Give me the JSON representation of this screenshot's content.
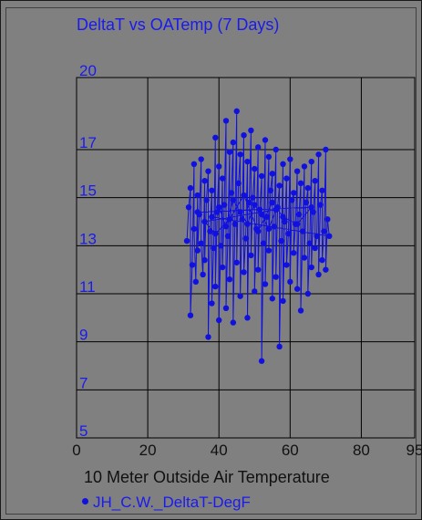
{
  "chart_data": {
    "type": "scatter",
    "title": "DeltaT vs OATemp (7 Days)",
    "xlabel": "10 Meter Outside Air Temperature",
    "ylabel": "",
    "xlim": [
      0,
      95
    ],
    "ylim": [
      5,
      20
    ],
    "x_ticks": [
      "0",
      "20",
      "40",
      "60",
      "80",
      "95"
    ],
    "y_ticks": [
      "5",
      "7",
      "9",
      "11",
      "13",
      "15",
      "17",
      "20"
    ],
    "grid": true,
    "legend_position": "bottom-left",
    "colors": {
      "series": "#1010e0",
      "text": "#1a1aee",
      "background": "#808080",
      "grid": "#000000"
    },
    "series": [
      {
        "name": "JH_C.W._DeltaT-DegF",
        "connected": true,
        "points": [
          [
            31,
            13.2
          ],
          [
            31.5,
            14.6
          ],
          [
            32,
            15.4
          ],
          [
            32,
            10.1
          ],
          [
            32.5,
            12.2
          ],
          [
            33,
            16.4
          ],
          [
            33,
            13.7
          ],
          [
            33.5,
            11.5
          ],
          [
            34,
            15.1
          ],
          [
            34,
            12.8
          ],
          [
            34.5,
            14.3
          ],
          [
            35,
            16.6
          ],
          [
            35,
            13.1
          ],
          [
            35.5,
            11.8
          ],
          [
            36,
            15.7
          ],
          [
            36,
            12.4
          ],
          [
            36.5,
            14.9
          ],
          [
            37,
            16.1
          ],
          [
            37,
            9.2
          ],
          [
            37.5,
            13.6
          ],
          [
            38,
            15.3
          ],
          [
            38,
            10.6
          ],
          [
            38.5,
            12.9
          ],
          [
            39,
            17.5
          ],
          [
            39,
            11.3
          ],
          [
            39.5,
            14.4
          ],
          [
            40,
            16.3
          ],
          [
            40,
            9.9
          ],
          [
            40.5,
            13.0
          ],
          [
            41,
            15.8
          ],
          [
            41,
            12.1
          ],
          [
            41.5,
            14.7
          ],
          [
            42,
            18.2
          ],
          [
            42,
            10.4
          ],
          [
            42.5,
            13.4
          ],
          [
            43,
            16.9
          ],
          [
            43,
            11.6
          ],
          [
            43.5,
            15.2
          ],
          [
            44,
            17.3
          ],
          [
            44,
            9.8
          ],
          [
            44.5,
            13.9
          ],
          [
            45,
            18.6
          ],
          [
            45,
            12.3
          ],
          [
            45.5,
            15.6
          ],
          [
            46,
            16.8
          ],
          [
            46,
            10.9
          ],
          [
            46.5,
            14.1
          ],
          [
            47,
            17.6
          ],
          [
            47,
            11.9
          ],
          [
            47.5,
            13.3
          ],
          [
            48,
            16.5
          ],
          [
            48,
            10.0
          ],
          [
            48.5,
            14.8
          ],
          [
            49,
            17.8
          ],
          [
            49,
            12.6
          ],
          [
            49.5,
            15.0
          ],
          [
            50,
            16.2
          ],
          [
            50,
            11.1
          ],
          [
            50.5,
            13.7
          ],
          [
            51,
            17.1
          ],
          [
            51,
            12.0
          ],
          [
            51.5,
            14.5
          ],
          [
            52,
            15.9
          ],
          [
            52,
            8.2
          ],
          [
            52.5,
            13.1
          ],
          [
            53,
            17.4
          ],
          [
            53,
            11.4
          ],
          [
            53.5,
            14.2
          ],
          [
            54,
            16.7
          ],
          [
            54,
            12.8
          ],
          [
            54.5,
            15.3
          ],
          [
            55,
            16.0
          ],
          [
            55,
            10.8
          ],
          [
            55.5,
            13.8
          ],
          [
            56,
            17.0
          ],
          [
            56,
            11.7
          ],
          [
            56.5,
            14.6
          ],
          [
            57,
            15.5
          ],
          [
            57,
            8.8
          ],
          [
            57.5,
            13.2
          ],
          [
            58,
            16.4
          ],
          [
            58,
            10.7
          ],
          [
            58.5,
            14.0
          ],
          [
            59,
            15.8
          ],
          [
            59,
            12.2
          ],
          [
            59.5,
            13.5
          ],
          [
            60,
            16.6
          ],
          [
            60,
            11.5
          ],
          [
            60.5,
            14.9
          ],
          [
            61,
            15.2
          ],
          [
            61,
            12.7
          ],
          [
            61.5,
            13.9
          ],
          [
            62,
            16.1
          ],
          [
            62,
            11.2
          ],
          [
            62.5,
            14.3
          ],
          [
            63,
            15.6
          ],
          [
            63,
            10.3
          ],
          [
            63.5,
            13.6
          ],
          [
            64,
            16.3
          ],
          [
            64,
            12.5
          ],
          [
            64.5,
            14.8
          ],
          [
            65,
            15.4
          ],
          [
            65,
            11.0
          ],
          [
            65.5,
            13.1
          ],
          [
            66,
            16.5
          ],
          [
            66,
            12.1
          ],
          [
            66.5,
            14.4
          ],
          [
            67,
            15.7
          ],
          [
            67,
            12.9
          ],
          [
            67.5,
            13.4
          ],
          [
            68,
            16.8
          ],
          [
            68,
            11.8
          ],
          [
            68.5,
            14.7
          ],
          [
            69,
            15.3
          ],
          [
            69,
            12.4
          ],
          [
            69.5,
            13.6
          ],
          [
            70,
            17.0
          ],
          [
            70,
            12.0
          ],
          [
            70.5,
            14.1
          ],
          [
            71,
            13.4
          ],
          [
            38,
            14.2
          ],
          [
            40,
            14.6
          ],
          [
            42,
            13.8
          ],
          [
            44,
            14.9
          ],
          [
            46,
            14.4
          ],
          [
            48,
            13.9
          ],
          [
            50,
            14.7
          ],
          [
            52,
            14.3
          ],
          [
            54,
            13.7
          ],
          [
            56,
            14.5
          ],
          [
            36,
            14.0
          ],
          [
            39,
            13.5
          ],
          [
            43,
            14.1
          ],
          [
            47,
            15.1
          ],
          [
            51,
            13.6
          ],
          [
            55,
            14.8
          ],
          [
            58,
            14.2
          ],
          [
            62,
            13.9
          ],
          [
            66,
            14.6
          ],
          [
            34,
            14.4
          ]
        ]
      }
    ]
  }
}
